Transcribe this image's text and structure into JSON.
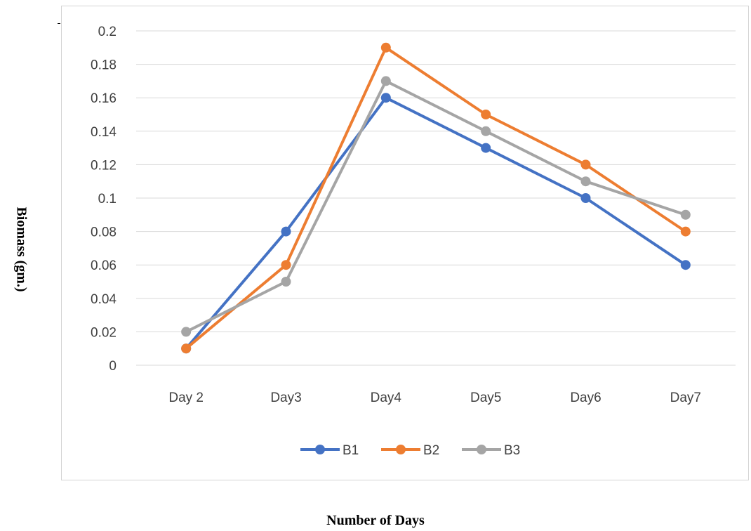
{
  "chart_data": {
    "type": "line",
    "categories": [
      "Day 2",
      "Day3",
      "Day4",
      "Day5",
      "Day6",
      "Day7"
    ],
    "series": [
      {
        "name": "B1",
        "color": "#4472C4",
        "values": [
          0.01,
          0.08,
          0.16,
          0.13,
          0.1,
          0.06
        ]
      },
      {
        "name": "B2",
        "color": "#ED7D31",
        "values": [
          0.01,
          0.06,
          0.19,
          0.15,
          0.12,
          0.08
        ]
      },
      {
        "name": "B3",
        "color": "#A5A5A5",
        "values": [
          0.02,
          0.05,
          0.17,
          0.14,
          0.11,
          0.09
        ]
      }
    ],
    "yticks": [
      "0",
      "0.02",
      "0.04",
      "0.06",
      "0.08",
      "0.1",
      "0.12",
      "0.14",
      "0.16",
      "0.18",
      "0.2"
    ],
    "ylim": [
      0,
      0.2
    ],
    "xlabel": "Number of Days",
    "ylabel": "Biomass (gm.)",
    "grid": "horizontal",
    "legend_position": "bottom"
  }
}
